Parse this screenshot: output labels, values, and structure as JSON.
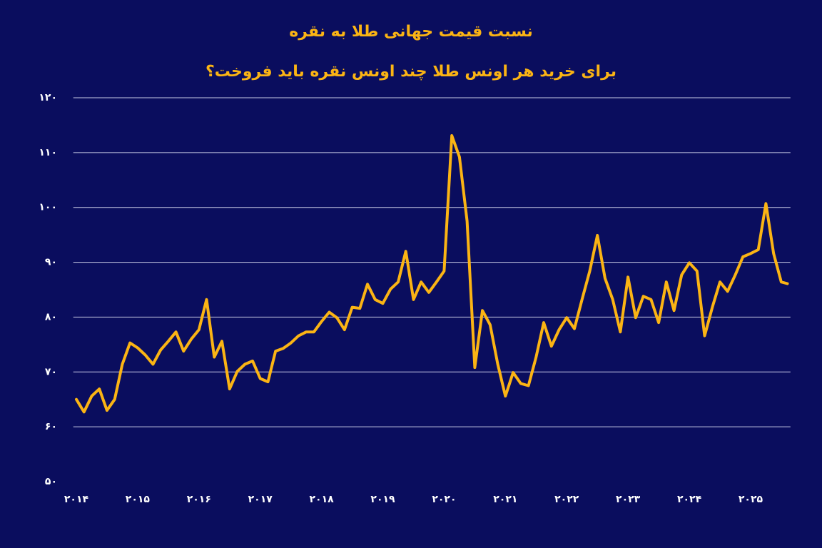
{
  "chart_data": {
    "type": "line",
    "title": "نسبت قیمت جهانی طلا به نقره",
    "subtitle": "برای خرید هر اونس طلا چند اونس نقره باید فروخت؟",
    "color": "#fbb414",
    "grid": true,
    "x": [
      2014,
      2014.125,
      2014.25,
      2014.375,
      2014.5,
      2014.625,
      2014.75,
      2014.875,
      2015,
      2015.125,
      2015.25,
      2015.375,
      2015.5,
      2015.625,
      2015.75,
      2015.875,
      2016,
      2016.125,
      2016.25,
      2016.375,
      2016.5,
      2016.625,
      2016.75,
      2016.875,
      2017,
      2017.125,
      2017.25,
      2017.375,
      2017.5,
      2017.625,
      2017.75,
      2017.875,
      2018,
      2018.125,
      2018.25,
      2018.375,
      2018.5,
      2018.625,
      2018.75,
      2018.875,
      2019,
      2019.125,
      2019.25,
      2019.375,
      2019.5,
      2019.625,
      2019.75,
      2019.875,
      2020,
      2020.125,
      2020.25,
      2020.375,
      2020.5,
      2020.625,
      2020.75,
      2020.875,
      2021,
      2021.125,
      2021.25,
      2021.375,
      2021.5,
      2021.625,
      2021.75,
      2021.875,
      2022,
      2022.125,
      2022.25,
      2022.375,
      2022.5,
      2022.625,
      2022.75,
      2022.875,
      2023,
      2023.125,
      2023.25,
      2023.375,
      2023.5,
      2023.625,
      2023.75,
      2023.875,
      2024,
      2024.125,
      2024.25,
      2024.375,
      2024.5,
      2024.625,
      2024.75,
      2024.875,
      2025,
      2025.125,
      2025.25,
      2025.375,
      2025.5,
      2025.6
    ],
    "values": [
      65,
      62.7,
      65.6,
      66.9,
      63,
      65,
      71.4,
      75.3,
      74.4,
      73.1,
      71.4,
      74,
      75.6,
      77.3,
      73.8,
      76,
      77.7,
      83.2,
      72.7,
      75.6,
      66.9,
      70.1,
      71.4,
      72,
      68.8,
      68.2,
      73.8,
      74.3,
      75.3,
      76.6,
      77.3,
      77.3,
      79.2,
      80.9,
      79.9,
      77.7,
      81.8,
      81.6,
      86,
      83.2,
      82.5,
      85.1,
      86.4,
      92,
      83.2,
      86.4,
      84.5,
      86.4,
      88.4,
      113.1,
      109.2,
      97.5,
      70.8,
      81.2,
      78.6,
      71.4,
      65.6,
      69.9,
      67.9,
      67.5,
      72.7,
      79,
      74.7,
      77.7,
      79.9,
      77.9,
      83.2,
      88.4,
      94.9,
      87.1,
      83.2,
      77.3,
      87.3,
      79.9,
      83.8,
      83.2,
      79,
      86.4,
      81.2,
      87.7,
      89.9,
      88.4,
      76.6,
      81.8,
      86.4,
      84.7,
      87.7,
      91,
      91.6,
      92.3,
      100.7,
      91.6,
      86.4,
      86.1
    ],
    "xlim": [
      2013.95,
      2025.65
    ],
    "xticks": [
      {
        "value": 2014,
        "label": "۲۰۱۴"
      },
      {
        "value": 2015,
        "label": "۲۰۱۵"
      },
      {
        "value": 2016,
        "label": "۲۰۱۶"
      },
      {
        "value": 2017,
        "label": "۲۰۱۷"
      },
      {
        "value": 2018,
        "label": "۲۰۱۸"
      },
      {
        "value": 2019,
        "label": "۲۰۱۹"
      },
      {
        "value": 2020,
        "label": "۲۰۲۰"
      },
      {
        "value": 2021,
        "label": "۲۰۲۱"
      },
      {
        "value": 2022,
        "label": "۲۰۲۲"
      },
      {
        "value": 2023,
        "label": "۲۰۲۳"
      },
      {
        "value": 2024,
        "label": "۲۰۲۴"
      },
      {
        "value": 2025,
        "label": "۲۰۲۵"
      }
    ],
    "ylim": [
      50,
      120
    ],
    "yticks": [
      {
        "value": 50,
        "label": "۵۰"
      },
      {
        "value": 60,
        "label": "۶۰"
      },
      {
        "value": 70,
        "label": "۷۰"
      },
      {
        "value": 80,
        "label": "۸۰"
      },
      {
        "value": 90,
        "label": "۹۰"
      },
      {
        "value": 100,
        "label": "۱۰۰"
      },
      {
        "value": 110,
        "label": "۱۱۰"
      },
      {
        "value": 120,
        "label": "۱۲۰"
      }
    ]
  }
}
